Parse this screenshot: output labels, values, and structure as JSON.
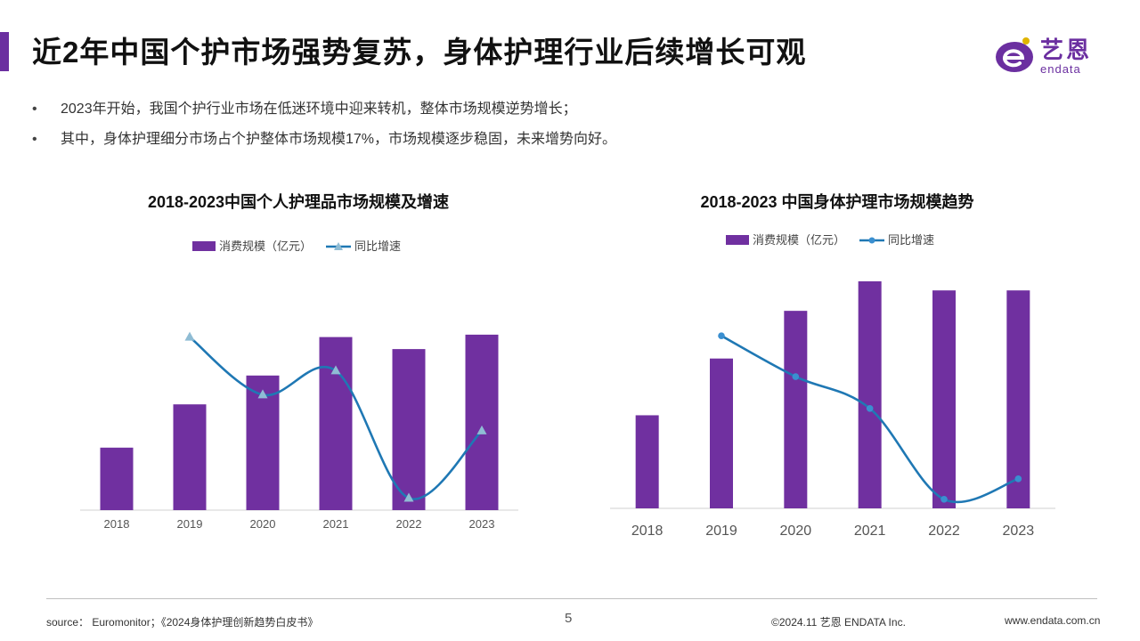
{
  "header": {
    "title": "近2年中国个护市场强势复苏，身体护理行业后续增长可观",
    "logo": {
      "cn": "艺恩",
      "en": "endata"
    }
  },
  "bullets": [
    "2023年开始，我国个护行业市场在低迷环境中迎来转机，整体市场规模逆势增长；",
    "其中，身体护理细分市场占个护整体市场规模17%，市场规模逐步稳固，未来增势向好。"
  ],
  "colors": {
    "accent": "#6b2fa0",
    "bar": "#7030a0",
    "line": "#1f78b4",
    "marker_left": "#8fbcd4",
    "marker_right": "#3a8fd0"
  },
  "chart_data": [
    {
      "type": "bar",
      "title": "2018-2023中国个人护理品市场规模及增速",
      "categories": [
        "2018",
        "2019",
        "2020",
        "2021",
        "2022",
        "2023"
      ],
      "series": [
        {
          "name": "消费规模（亿元）",
          "type": "bar",
          "values": [
            26,
            44,
            56,
            72,
            67,
            73
          ]
        },
        {
          "name": "同比增速",
          "type": "line",
          "marker": "triangle",
          "values": [
            null,
            72,
            48,
            58,
            5,
            33
          ]
        }
      ],
      "ylim": [
        0,
        100
      ],
      "grid": false,
      "legend": "top-center"
    },
    {
      "type": "bar",
      "title": "2018-2023 中国身体护理市场规模趋势",
      "categories": [
        "2018",
        "2019",
        "2020",
        "2021",
        "2022",
        "2023"
      ],
      "series": [
        {
          "name": "消费规模（亿元）",
          "type": "bar",
          "values": [
            41,
            66,
            87,
            100,
            96,
            96
          ]
        },
        {
          "name": "同比增速",
          "type": "line",
          "marker": "circle",
          "values": [
            null,
            76,
            58,
            44,
            4,
            13
          ]
        }
      ],
      "ylim": [
        0,
        100
      ],
      "grid": false,
      "legend": "top-center"
    }
  ],
  "footer": {
    "source": "source： Euromonitor；《2024身体护理创新趋势白皮书》",
    "page": "5",
    "copyright": "©2024.11  艺恩 ENDATA Inc.",
    "site": "www.endata.com.cn"
  }
}
